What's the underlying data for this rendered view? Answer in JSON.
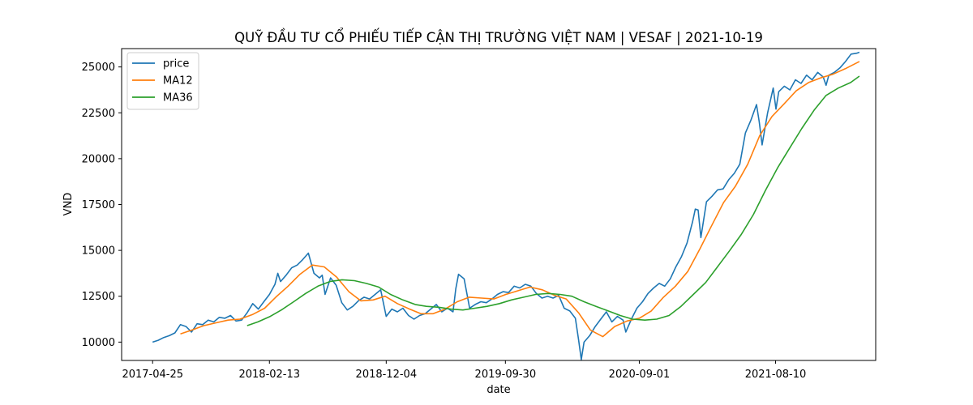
{
  "chart_data": {
    "type": "line",
    "title": "QUỸ ĐẦU TƯ CỔ PHIẾU TIẾP CẬN THỊ TRƯỜNG VIỆT NAM | VESAF | 2021-10-19",
    "xlabel": "date",
    "ylabel": "VND",
    "ylim": [
      9000,
      26000
    ],
    "y_ticks": [
      10000,
      12500,
      15000,
      17500,
      20000,
      22500,
      25000
    ],
    "y_tick_labels": [
      "10000",
      "12500",
      "15000",
      "17500",
      "20000",
      "22500",
      "25000"
    ],
    "x_ticks": [
      "2017-04-25",
      "2018-02-13",
      "2018-12-04",
      "2019-09-30",
      "2020-09-01",
      "2021-08-10"
    ],
    "legend_position": "top-left",
    "grid": false,
    "series": [
      {
        "name": "price",
        "color": "#1f77b4",
        "points": [
          [
            "2017-04-25",
            10000
          ],
          [
            "2017-05-09",
            10100
          ],
          [
            "2017-05-23",
            10250
          ],
          [
            "2017-06-06",
            10350
          ],
          [
            "2017-06-20",
            10500
          ],
          [
            "2017-07-04",
            10950
          ],
          [
            "2017-07-18",
            10850
          ],
          [
            "2017-08-01",
            10550
          ],
          [
            "2017-08-15",
            11000
          ],
          [
            "2017-08-29",
            10950
          ],
          [
            "2017-09-12",
            11200
          ],
          [
            "2017-09-26",
            11100
          ],
          [
            "2017-10-10",
            11350
          ],
          [
            "2017-10-24",
            11300
          ],
          [
            "2017-11-07",
            11450
          ],
          [
            "2017-11-21",
            11150
          ],
          [
            "2017-12-05",
            11200
          ],
          [
            "2017-12-19",
            11600
          ],
          [
            "2018-01-02",
            12100
          ],
          [
            "2018-01-16",
            11800
          ],
          [
            "2018-01-30",
            12200
          ],
          [
            "2018-02-13",
            12600
          ],
          [
            "2018-02-27",
            13150
          ],
          [
            "2018-03-06",
            13750
          ],
          [
            "2018-03-13",
            13300
          ],
          [
            "2018-03-27",
            13650
          ],
          [
            "2018-04-10",
            14050
          ],
          [
            "2018-04-24",
            14200
          ],
          [
            "2018-05-08",
            14500
          ],
          [
            "2018-05-22",
            14850
          ],
          [
            "2018-06-05",
            13750
          ],
          [
            "2018-06-19",
            13500
          ],
          [
            "2018-06-26",
            13650
          ],
          [
            "2018-07-03",
            12600
          ],
          [
            "2018-07-17",
            13500
          ],
          [
            "2018-07-31",
            13100
          ],
          [
            "2018-08-14",
            12150
          ],
          [
            "2018-08-28",
            11750
          ],
          [
            "2018-09-11",
            11950
          ],
          [
            "2018-09-25",
            12250
          ],
          [
            "2018-10-09",
            12450
          ],
          [
            "2018-10-23",
            12350
          ],
          [
            "2018-11-06",
            12600
          ],
          [
            "2018-11-20",
            12850
          ],
          [
            "2018-12-04",
            11400
          ],
          [
            "2018-12-18",
            11800
          ],
          [
            "2019-01-01",
            11650
          ],
          [
            "2019-01-15",
            11850
          ],
          [
            "2019-01-29",
            11450
          ],
          [
            "2019-02-12",
            11250
          ],
          [
            "2019-02-26",
            11450
          ],
          [
            "2019-03-12",
            11550
          ],
          [
            "2019-03-26",
            11800
          ],
          [
            "2019-04-09",
            12050
          ],
          [
            "2019-04-23",
            11650
          ],
          [
            "2019-05-07",
            11850
          ],
          [
            "2019-05-21",
            11650
          ],
          [
            "2019-05-28",
            12900
          ],
          [
            "2019-06-04",
            13700
          ],
          [
            "2019-06-18",
            13450
          ],
          [
            "2019-07-02",
            11850
          ],
          [
            "2019-07-16",
            12050
          ],
          [
            "2019-07-30",
            12200
          ],
          [
            "2019-08-13",
            12150
          ],
          [
            "2019-08-27",
            12350
          ],
          [
            "2019-09-10",
            12600
          ],
          [
            "2019-09-24",
            12750
          ],
          [
            "2019-10-08",
            12700
          ],
          [
            "2019-10-22",
            13050
          ],
          [
            "2019-11-05",
            12950
          ],
          [
            "2019-11-19",
            13150
          ],
          [
            "2019-12-03",
            13050
          ],
          [
            "2019-12-17",
            12650
          ],
          [
            "2019-12-31",
            12400
          ],
          [
            "2020-01-14",
            12500
          ],
          [
            "2020-01-28",
            12400
          ],
          [
            "2020-02-11",
            12550
          ],
          [
            "2020-02-25",
            11850
          ],
          [
            "2020-03-10",
            11700
          ],
          [
            "2020-03-24",
            11300
          ],
          [
            "2020-04-01",
            10150
          ],
          [
            "2020-04-08",
            9050
          ],
          [
            "2020-04-15",
            10000
          ],
          [
            "2020-04-29",
            10350
          ],
          [
            "2020-05-13",
            10850
          ],
          [
            "2020-05-27",
            11250
          ],
          [
            "2020-06-10",
            11650
          ],
          [
            "2020-06-24",
            11100
          ],
          [
            "2020-07-08",
            11400
          ],
          [
            "2020-07-22",
            11200
          ],
          [
            "2020-07-29",
            10550
          ],
          [
            "2020-08-12",
            11250
          ],
          [
            "2020-08-26",
            11850
          ],
          [
            "2020-09-09",
            12200
          ],
          [
            "2020-09-23",
            12650
          ],
          [
            "2020-10-07",
            12950
          ],
          [
            "2020-10-21",
            13200
          ],
          [
            "2020-11-04",
            13050
          ],
          [
            "2020-11-18",
            13450
          ],
          [
            "2020-12-02",
            14100
          ],
          [
            "2020-12-16",
            14650
          ],
          [
            "2020-12-30",
            15400
          ],
          [
            "2021-01-13",
            16550
          ],
          [
            "2021-01-20",
            17250
          ],
          [
            "2021-01-27",
            17200
          ],
          [
            "2021-02-03",
            15700
          ],
          [
            "2021-02-17",
            17650
          ],
          [
            "2021-03-03",
            17950
          ],
          [
            "2021-03-17",
            18300
          ],
          [
            "2021-03-31",
            18350
          ],
          [
            "2021-04-14",
            18850
          ],
          [
            "2021-04-28",
            19200
          ],
          [
            "2021-05-12",
            19700
          ],
          [
            "2021-05-26",
            21400
          ],
          [
            "2021-06-09",
            22100
          ],
          [
            "2021-06-23",
            22950
          ],
          [
            "2021-06-30",
            22000
          ],
          [
            "2021-07-07",
            20750
          ],
          [
            "2021-07-21",
            22500
          ],
          [
            "2021-08-04",
            23850
          ],
          [
            "2021-08-11",
            22700
          ],
          [
            "2021-08-18",
            23650
          ],
          [
            "2021-09-01",
            23950
          ],
          [
            "2021-09-15",
            23750
          ],
          [
            "2021-09-29",
            24300
          ],
          [
            "2021-10-13",
            24100
          ],
          [
            "2021-10-27",
            24550
          ],
          [
            "2021-11-10",
            24300
          ],
          [
            "2021-11-24",
            24700
          ],
          [
            "2021-12-08",
            24450
          ],
          [
            "2021-12-15",
            24000
          ],
          [
            "2021-12-22",
            24550
          ],
          [
            "2022-01-05",
            24700
          ],
          [
            "2022-01-19",
            24950
          ],
          [
            "2022-02-02",
            25300
          ],
          [
            "2022-02-16",
            25700
          ],
          [
            "2022-03-02",
            25750
          ],
          [
            "2022-03-09",
            25800
          ]
        ]
      },
      {
        "name": "MA12",
        "color": "#ff7f0e",
        "points": [
          [
            "2017-07-04",
            10450
          ],
          [
            "2017-08-01",
            10650
          ],
          [
            "2017-09-01",
            10900
          ],
          [
            "2017-10-01",
            11050
          ],
          [
            "2017-11-01",
            11200
          ],
          [
            "2017-12-01",
            11250
          ],
          [
            "2018-01-01",
            11500
          ],
          [
            "2018-02-01",
            11850
          ],
          [
            "2018-03-01",
            12450
          ],
          [
            "2018-04-01",
            13050
          ],
          [
            "2018-05-01",
            13700
          ],
          [
            "2018-06-01",
            14200
          ],
          [
            "2018-07-01",
            14100
          ],
          [
            "2018-08-01",
            13550
          ],
          [
            "2018-09-01",
            12750
          ],
          [
            "2018-10-01",
            12250
          ],
          [
            "2018-11-01",
            12300
          ],
          [
            "2018-12-01",
            12500
          ],
          [
            "2019-01-01",
            12100
          ],
          [
            "2019-02-01",
            11800
          ],
          [
            "2019-03-01",
            11550
          ],
          [
            "2019-04-01",
            11550
          ],
          [
            "2019-05-01",
            11800
          ],
          [
            "2019-06-01",
            12200
          ],
          [
            "2019-07-01",
            12450
          ],
          [
            "2019-08-01",
            12400
          ],
          [
            "2019-09-01",
            12350
          ],
          [
            "2019-10-01",
            12600
          ],
          [
            "2019-11-01",
            12800
          ],
          [
            "2019-12-01",
            13000
          ],
          [
            "2020-01-01",
            12850
          ],
          [
            "2020-02-01",
            12550
          ],
          [
            "2020-03-01",
            12350
          ],
          [
            "2020-04-01",
            11600
          ],
          [
            "2020-05-01",
            10650
          ],
          [
            "2020-06-01",
            10300
          ],
          [
            "2020-07-01",
            10850
          ],
          [
            "2020-08-01",
            11150
          ],
          [
            "2020-09-01",
            11300
          ],
          [
            "2020-10-01",
            11700
          ],
          [
            "2020-11-01",
            12450
          ],
          [
            "2020-12-01",
            13050
          ],
          [
            "2021-01-01",
            13850
          ],
          [
            "2021-02-01",
            15100
          ],
          [
            "2021-03-01",
            16300
          ],
          [
            "2021-04-01",
            17600
          ],
          [
            "2021-05-01",
            18500
          ],
          [
            "2021-06-01",
            19700
          ],
          [
            "2021-07-01",
            21250
          ],
          [
            "2021-08-01",
            22300
          ],
          [
            "2021-09-01",
            23000
          ],
          [
            "2021-10-01",
            23700
          ],
          [
            "2021-11-01",
            24150
          ],
          [
            "2021-12-01",
            24400
          ],
          [
            "2022-01-01",
            24600
          ],
          [
            "2022-02-01",
            24900
          ],
          [
            "2022-03-09",
            25300
          ]
        ]
      },
      {
        "name": "MA36",
        "color": "#2ca02c",
        "points": [
          [
            "2017-12-19",
            10900
          ],
          [
            "2018-01-15",
            11100
          ],
          [
            "2018-02-15",
            11400
          ],
          [
            "2018-03-15",
            11750
          ],
          [
            "2018-04-15",
            12200
          ],
          [
            "2018-05-15",
            12650
          ],
          [
            "2018-06-15",
            13050
          ],
          [
            "2018-07-15",
            13300
          ],
          [
            "2018-08-15",
            13400
          ],
          [
            "2018-09-15",
            13350
          ],
          [
            "2018-10-15",
            13200
          ],
          [
            "2018-11-15",
            13000
          ],
          [
            "2018-12-15",
            12600
          ],
          [
            "2019-01-15",
            12300
          ],
          [
            "2019-02-15",
            12050
          ],
          [
            "2019-03-15",
            11950
          ],
          [
            "2019-04-15",
            11900
          ],
          [
            "2019-05-15",
            11800
          ],
          [
            "2019-06-15",
            11750
          ],
          [
            "2019-07-15",
            11850
          ],
          [
            "2019-08-15",
            11950
          ],
          [
            "2019-09-15",
            12100
          ],
          [
            "2019-10-15",
            12300
          ],
          [
            "2019-11-15",
            12450
          ],
          [
            "2019-12-15",
            12600
          ],
          [
            "2020-01-15",
            12650
          ],
          [
            "2020-02-15",
            12600
          ],
          [
            "2020-03-15",
            12500
          ],
          [
            "2020-04-15",
            12200
          ],
          [
            "2020-05-15",
            11950
          ],
          [
            "2020-06-15",
            11700
          ],
          [
            "2020-07-15",
            11450
          ],
          [
            "2020-08-15",
            11250
          ],
          [
            "2020-09-15",
            11200
          ],
          [
            "2020-10-15",
            11250
          ],
          [
            "2020-11-15",
            11450
          ],
          [
            "2020-12-15",
            11950
          ],
          [
            "2021-01-15",
            12600
          ],
          [
            "2021-02-15",
            13250
          ],
          [
            "2021-03-15",
            14050
          ],
          [
            "2021-04-15",
            14950
          ],
          [
            "2021-05-15",
            15850
          ],
          [
            "2021-06-15",
            16950
          ],
          [
            "2021-07-15",
            18250
          ],
          [
            "2021-08-15",
            19500
          ],
          [
            "2021-09-15",
            20600
          ],
          [
            "2021-10-15",
            21650
          ],
          [
            "2021-11-15",
            22650
          ],
          [
            "2021-12-15",
            23450
          ],
          [
            "2022-01-15",
            23850
          ],
          [
            "2022-02-15",
            24150
          ],
          [
            "2022-03-09",
            24500
          ]
        ]
      }
    ]
  }
}
